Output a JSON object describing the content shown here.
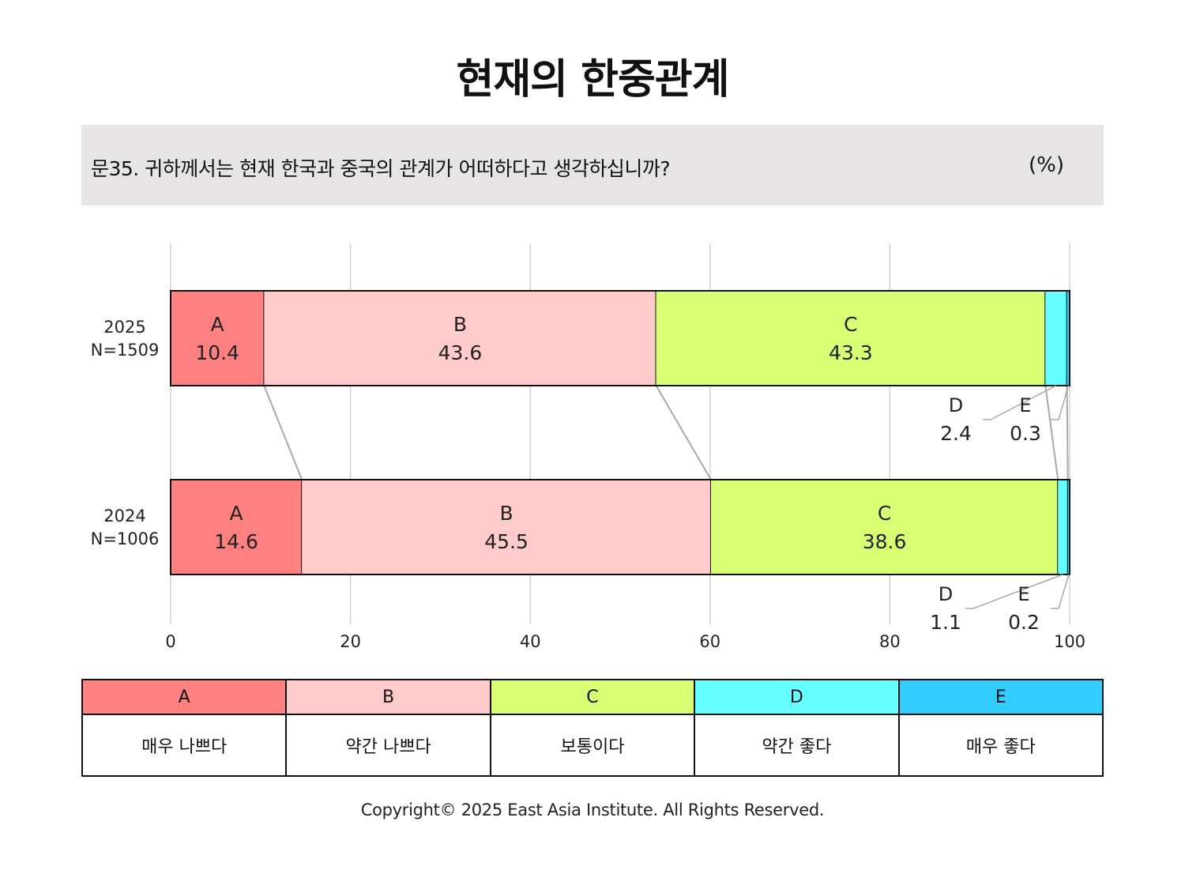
{
  "title": "현재의 한중관계",
  "question": "문35. 귀하께서는 현재 한국과 중국의 관계가 어떠하다고 생각하십니까?",
  "unit": "(%)",
  "chart_data": {
    "type": "bar",
    "orientation": "horizontal",
    "stacked": true,
    "xlim": [
      0,
      100
    ],
    "xticks": [
      0,
      20,
      40,
      60,
      80,
      100
    ],
    "grid": true,
    "categories": [
      {
        "year": "2025",
        "n": "N=1509"
      },
      {
        "year": "2024",
        "n": "N=1006"
      }
    ],
    "series": [
      {
        "name": "A",
        "color": "#ff8080",
        "values": [
          10.4,
          14.6
        ]
      },
      {
        "name": "B",
        "color": "#ffcaca",
        "values": [
          43.6,
          45.5
        ]
      },
      {
        "name": "C",
        "color": "#d8fe74",
        "values": [
          43.3,
          38.6
        ]
      },
      {
        "name": "D",
        "color": "#66ffff",
        "values": [
          2.4,
          1.1
        ]
      },
      {
        "name": "E",
        "color": "#33ccff",
        "values": [
          0.3,
          0.2
        ]
      }
    ]
  },
  "legend": [
    {
      "code": "A",
      "label": "매우 나쁘다",
      "color": "#ff8080"
    },
    {
      "code": "B",
      "label": "약간 나쁘다",
      "color": "#ffcaca"
    },
    {
      "code": "C",
      "label": "보통이다",
      "color": "#d8fe74"
    },
    {
      "code": "D",
      "label": "약간 좋다",
      "color": "#66ffff"
    },
    {
      "code": "E",
      "label": "매우 좋다",
      "color": "#33ccff"
    }
  ],
  "copyright": "Copyright© 2025 East Asia Institute. All Rights Reserved."
}
